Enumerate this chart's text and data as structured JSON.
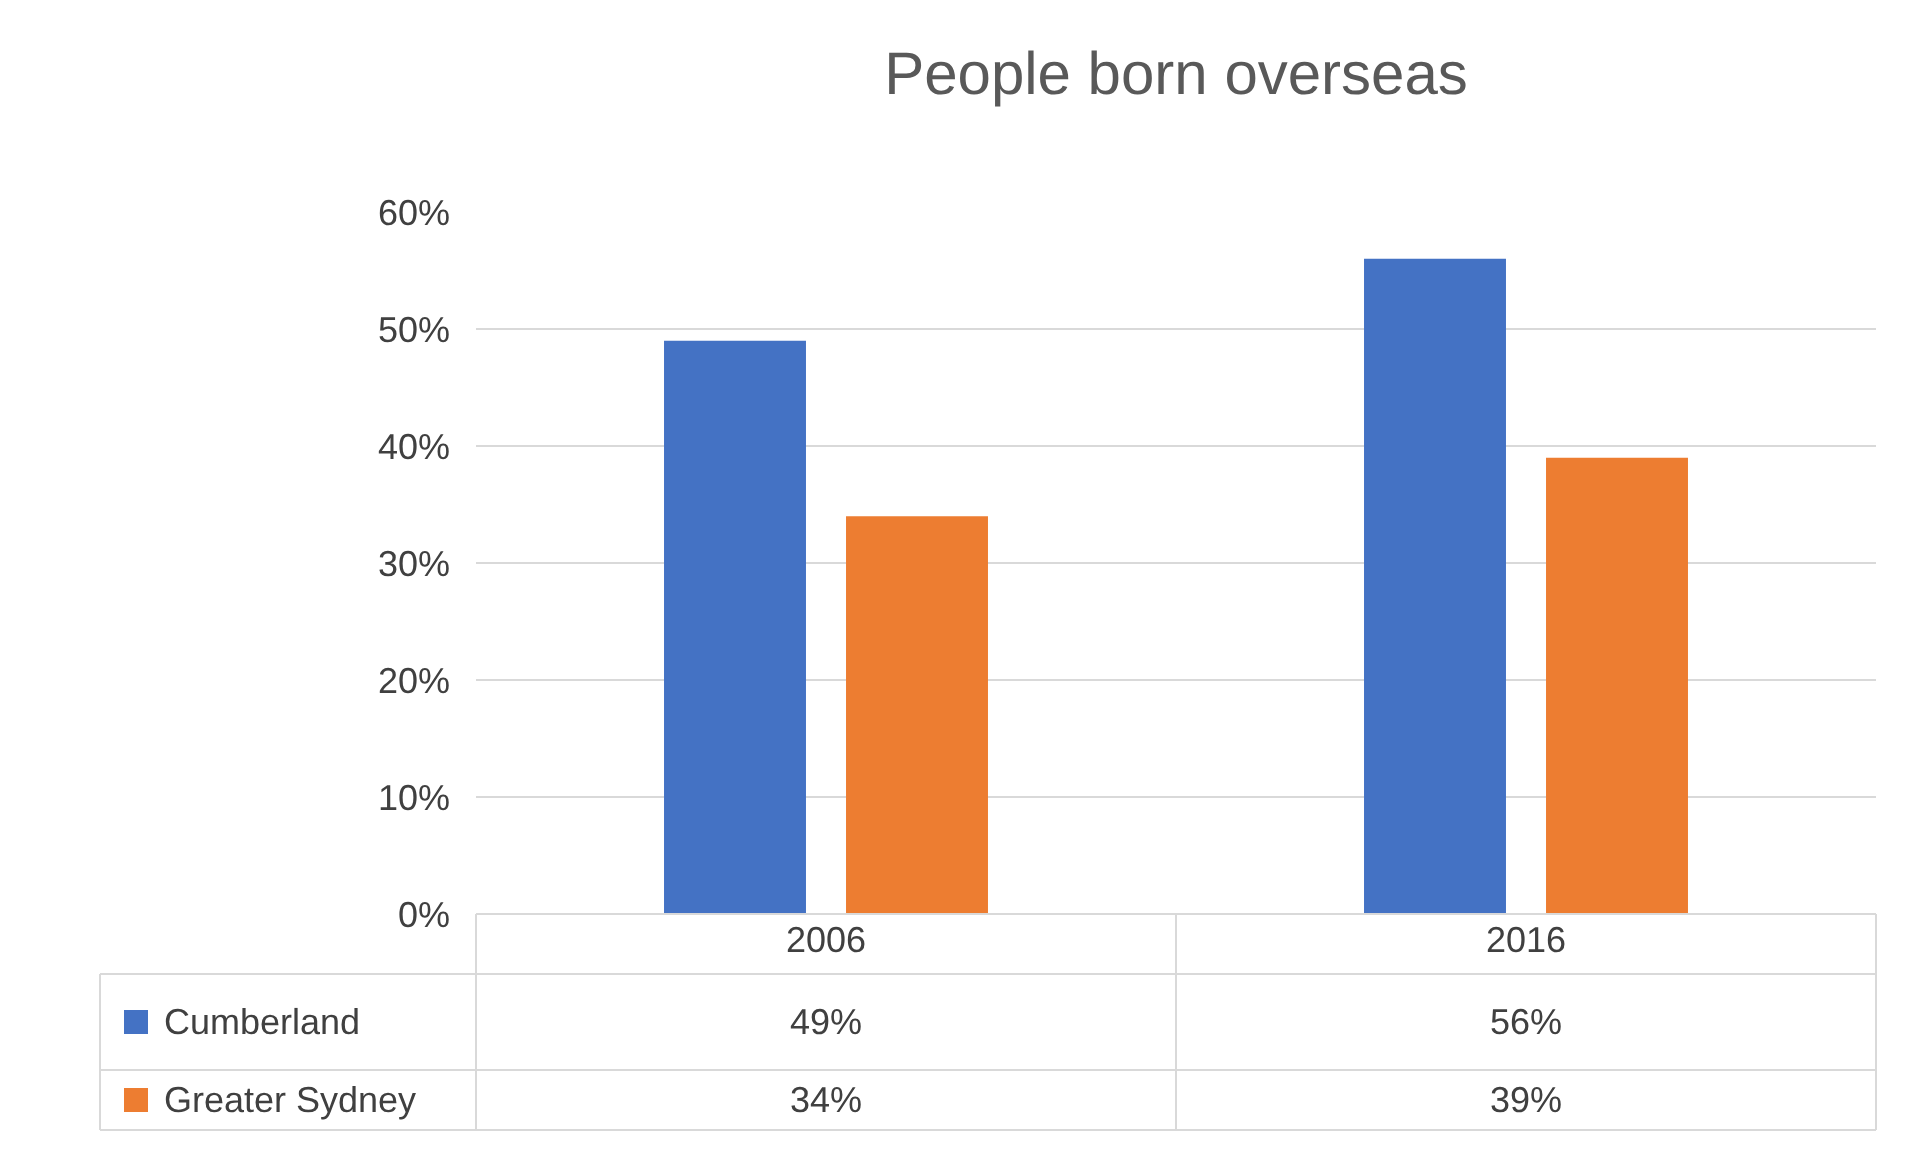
{
  "chart_data": {
    "type": "bar",
    "title": "People born overseas",
    "categories": [
      "2006",
      "2016"
    ],
    "series": [
      {
        "name": "Cumberland",
        "color": "#4472c4",
        "values": [
          49,
          56
        ],
        "value_labels": [
          "49%",
          "56%"
        ]
      },
      {
        "name": "Greater Sydney",
        "color": "#ed7d31",
        "values": [
          34,
          39
        ],
        "value_labels": [
          "34%",
          "39%"
        ]
      }
    ],
    "ylim": [
      0,
      60
    ],
    "yticks": [
      {
        "value": 0,
        "label": "0%"
      },
      {
        "value": 10,
        "label": "10%"
      },
      {
        "value": 20,
        "label": "20%"
      },
      {
        "value": 30,
        "label": "30%"
      },
      {
        "value": 40,
        "label": "40%"
      },
      {
        "value": 50,
        "label": "50%"
      },
      {
        "value": 60,
        "label": "60%"
      }
    ],
    "grid": "y",
    "legend": "bottom",
    "data_labels": true
  }
}
